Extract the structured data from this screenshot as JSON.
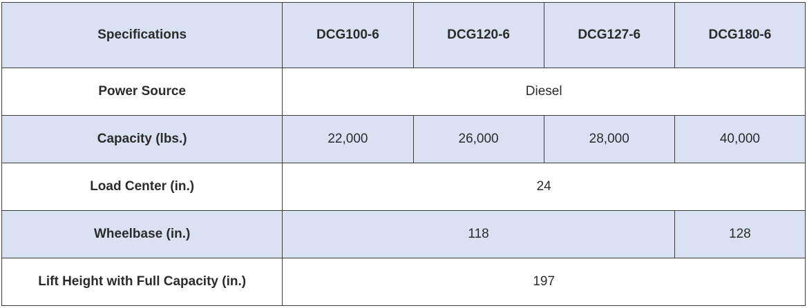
{
  "table": {
    "header": {
      "spec": "Specifications",
      "models": [
        "DCG100-6",
        "DCG120-6",
        "DCG127-6",
        "DCG180-6"
      ]
    },
    "rows": {
      "power_source": {
        "label": "Power Source",
        "all_models": "Diesel"
      },
      "capacity": {
        "label": "Capacity (lbs.)",
        "values": [
          "22,000",
          "26,000",
          "28,000",
          "40,000"
        ]
      },
      "load_center": {
        "label": "Load Center (in.)",
        "all_models": "24"
      },
      "wheelbase": {
        "label": "Wheelbase (in.)",
        "dcg100_127": "118",
        "dcg180": "128"
      },
      "lift_height": {
        "label": "Lift Height with Full Capacity (in.)",
        "all_models": "197"
      }
    }
  },
  "colors": {
    "shaded_row": "#d9e1f2",
    "border": "#3c3c3c",
    "text": "#2b2b2b"
  }
}
